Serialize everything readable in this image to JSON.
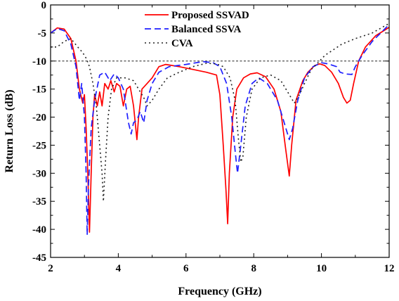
{
  "chart_data": {
    "type": "line",
    "xlabel": "Frequency (GHz)",
    "ylabel": "Return Loss (dB)",
    "xlim": [
      2,
      12
    ],
    "ylim": [
      -45,
      0
    ],
    "xticks": [
      2,
      4,
      6,
      8,
      10,
      12
    ],
    "yticks": [
      0,
      -5,
      -10,
      -15,
      -20,
      -25,
      -30,
      -35,
      -40,
      -45
    ],
    "grid": false,
    "legend_position": "top-center",
    "reference_line": {
      "y": -10,
      "style": "dashed"
    },
    "series": [
      {
        "name": "Proposed SSVAD",
        "color": "#ff0000",
        "dash": "solid",
        "points": [
          [
            2,
            -5
          ],
          [
            2.2,
            -4.1
          ],
          [
            2.4,
            -4.3
          ],
          [
            2.6,
            -6
          ],
          [
            2.75,
            -10
          ],
          [
            2.85,
            -15
          ],
          [
            2.95,
            -17.5
          ],
          [
            3.0,
            -16
          ],
          [
            3.05,
            -22
          ],
          [
            3.1,
            -30
          ],
          [
            3.15,
            -40.5
          ],
          [
            3.2,
            -30
          ],
          [
            3.25,
            -20
          ],
          [
            3.3,
            -16
          ],
          [
            3.38,
            -18
          ],
          [
            3.45,
            -15.5
          ],
          [
            3.52,
            -18
          ],
          [
            3.6,
            -14
          ],
          [
            3.7,
            -15
          ],
          [
            3.78,
            -13.5
          ],
          [
            3.88,
            -15.5
          ],
          [
            3.95,
            -14
          ],
          [
            4.05,
            -14.5
          ],
          [
            4.15,
            -18
          ],
          [
            4.25,
            -15
          ],
          [
            4.35,
            -14.5
          ],
          [
            4.45,
            -18
          ],
          [
            4.55,
            -24
          ],
          [
            4.6,
            -20
          ],
          [
            4.7,
            -15
          ],
          [
            4.85,
            -14
          ],
          [
            5.0,
            -13
          ],
          [
            5.2,
            -11
          ],
          [
            5.4,
            -10.6
          ],
          [
            5.8,
            -11
          ],
          [
            6.2,
            -11.5
          ],
          [
            6.6,
            -12
          ],
          [
            6.9,
            -12.5
          ],
          [
            7.0,
            -16
          ],
          [
            7.1,
            -25
          ],
          [
            7.18,
            -33
          ],
          [
            7.23,
            -39
          ],
          [
            7.28,
            -30
          ],
          [
            7.38,
            -20
          ],
          [
            7.5,
            -15
          ],
          [
            7.7,
            -13
          ],
          [
            7.9,
            -12.3
          ],
          [
            8.1,
            -12.1
          ],
          [
            8.35,
            -12.8
          ],
          [
            8.6,
            -15
          ],
          [
            8.8,
            -19
          ],
          [
            8.95,
            -26
          ],
          [
            9.05,
            -30.5
          ],
          [
            9.12,
            -25
          ],
          [
            9.25,
            -17
          ],
          [
            9.45,
            -13.5
          ],
          [
            9.6,
            -12
          ],
          [
            9.8,
            -10.8
          ],
          [
            9.95,
            -10.5
          ],
          [
            10.1,
            -10.8
          ],
          [
            10.3,
            -12
          ],
          [
            10.5,
            -14
          ],
          [
            10.65,
            -16.5
          ],
          [
            10.75,
            -17.5
          ],
          [
            10.85,
            -17
          ],
          [
            10.95,
            -14
          ],
          [
            11.1,
            -10
          ],
          [
            11.3,
            -7.5
          ],
          [
            11.6,
            -5.5
          ],
          [
            12,
            -4
          ]
        ]
      },
      {
        "name": "Balanced SSVA",
        "color": "#1f1fff",
        "dash": "dashed",
        "points": [
          [
            2,
            -5
          ],
          [
            2.2,
            -4.2
          ],
          [
            2.4,
            -4.6
          ],
          [
            2.6,
            -7
          ],
          [
            2.75,
            -11
          ],
          [
            2.85,
            -17
          ],
          [
            2.92,
            -14
          ],
          [
            3.0,
            -20
          ],
          [
            3.05,
            -30
          ],
          [
            3.08,
            -41
          ],
          [
            3.12,
            -32
          ],
          [
            3.2,
            -22
          ],
          [
            3.3,
            -17
          ],
          [
            3.45,
            -12.5
          ],
          [
            3.6,
            -12
          ],
          [
            3.75,
            -13.5
          ],
          [
            3.88,
            -12.3
          ],
          [
            4.0,
            -13
          ],
          [
            4.15,
            -15
          ],
          [
            4.3,
            -21
          ],
          [
            4.38,
            -23
          ],
          [
            4.45,
            -21
          ],
          [
            4.55,
            -20.5
          ],
          [
            4.65,
            -19
          ],
          [
            4.75,
            -21
          ],
          [
            4.85,
            -17
          ],
          [
            5.0,
            -14
          ],
          [
            5.2,
            -12
          ],
          [
            5.5,
            -11
          ],
          [
            6.0,
            -10.6
          ],
          [
            6.5,
            -10.1
          ],
          [
            6.8,
            -10.3
          ],
          [
            7.0,
            -11
          ],
          [
            7.2,
            -14
          ],
          [
            7.35,
            -20
          ],
          [
            7.45,
            -26
          ],
          [
            7.52,
            -30
          ],
          [
            7.6,
            -26
          ],
          [
            7.75,
            -18
          ],
          [
            7.95,
            -14
          ],
          [
            8.15,
            -13
          ],
          [
            8.4,
            -14
          ],
          [
            8.7,
            -17
          ],
          [
            8.9,
            -21
          ],
          [
            9.05,
            -24
          ],
          [
            9.15,
            -22
          ],
          [
            9.3,
            -17
          ],
          [
            9.5,
            -13
          ],
          [
            9.75,
            -11
          ],
          [
            10.0,
            -10.3
          ],
          [
            10.2,
            -10.5
          ],
          [
            10.45,
            -11
          ],
          [
            10.55,
            -12
          ],
          [
            10.7,
            -12.3
          ],
          [
            10.9,
            -12.4
          ],
          [
            11.0,
            -11
          ],
          [
            11.2,
            -9
          ],
          [
            11.5,
            -6.5
          ],
          [
            12,
            -3.5
          ]
        ]
      },
      {
        "name": "CVA",
        "color": "#222222",
        "dash": "dotted",
        "points": [
          [
            2,
            -7.5
          ],
          [
            2.2,
            -7.5
          ],
          [
            2.4,
            -6.5
          ],
          [
            2.6,
            -6
          ],
          [
            2.8,
            -7.5
          ],
          [
            2.95,
            -8.5
          ],
          [
            3.05,
            -9.5
          ],
          [
            3.15,
            -11
          ],
          [
            3.25,
            -14
          ],
          [
            3.35,
            -18
          ],
          [
            3.45,
            -25
          ],
          [
            3.52,
            -30
          ],
          [
            3.56,
            -35
          ],
          [
            3.62,
            -28
          ],
          [
            3.7,
            -20
          ],
          [
            3.8,
            -15
          ],
          [
            3.95,
            -13
          ],
          [
            4.2,
            -13
          ],
          [
            4.45,
            -13.5
          ],
          [
            4.6,
            -15
          ],
          [
            4.75,
            -16.5
          ],
          [
            4.85,
            -18
          ],
          [
            5.0,
            -17
          ],
          [
            5.2,
            -15
          ],
          [
            5.45,
            -13
          ],
          [
            5.8,
            -12
          ],
          [
            6.2,
            -11
          ],
          [
            6.6,
            -10.4
          ],
          [
            6.9,
            -10.5
          ],
          [
            7.1,
            -11
          ],
          [
            7.3,
            -13
          ],
          [
            7.45,
            -17
          ],
          [
            7.55,
            -24
          ],
          [
            7.62,
            -28
          ],
          [
            7.68,
            -27
          ],
          [
            7.78,
            -20
          ],
          [
            7.95,
            -15
          ],
          [
            8.2,
            -13
          ],
          [
            8.5,
            -12.5
          ],
          [
            8.8,
            -13.5
          ],
          [
            9.05,
            -16
          ],
          [
            9.2,
            -17.5
          ],
          [
            9.35,
            -16
          ],
          [
            9.5,
            -14
          ],
          [
            9.7,
            -11.5
          ],
          [
            9.9,
            -10.3
          ],
          [
            10.1,
            -9
          ],
          [
            10.35,
            -8
          ],
          [
            10.6,
            -7
          ],
          [
            11.0,
            -6
          ],
          [
            11.5,
            -5
          ],
          [
            12,
            -3.3
          ]
        ]
      }
    ]
  }
}
